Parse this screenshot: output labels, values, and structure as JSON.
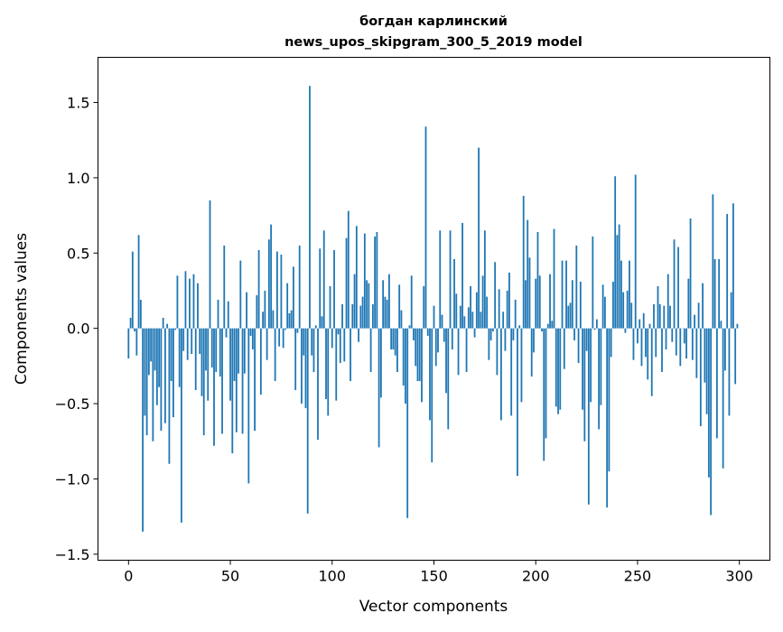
{
  "chart_data": {
    "type": "bar",
    "title": [
      "богдан карлинский",
      "news_upos_skipgram_300_5_2019 model"
    ],
    "xlabel": "Vector components",
    "ylabel": "Components values",
    "xlim": [
      -15,
      315
    ],
    "ylim": [
      -1.54,
      1.8
    ],
    "xticks": [
      0,
      50,
      100,
      150,
      200,
      250,
      300
    ],
    "xtick_labels": [
      "0",
      "50",
      "100",
      "150",
      "200",
      "250",
      "300"
    ],
    "yticks": [
      1.5,
      1.0,
      0.5,
      0.0,
      -0.5,
      -1.0,
      -1.5
    ],
    "ytick_labels": [
      "1.5",
      "1.0",
      "0.5",
      "0.0",
      "−0.5",
      "−1.0",
      "−1.5"
    ],
    "grid": false,
    "bar_color": "#1f77b4",
    "values": [
      -0.2,
      0.07,
      0.51,
      -0.02,
      -0.18,
      0.62,
      0.19,
      -1.35,
      -0.58,
      -0.71,
      -0.31,
      -0.22,
      -0.75,
      -0.28,
      -0.51,
      -0.39,
      -0.68,
      0.07,
      -0.63,
      0.03,
      -0.9,
      -0.35,
      -0.59,
      -0.01,
      0.35,
      -0.39,
      -1.29,
      -0.15,
      0.38,
      -0.21,
      0.33,
      -0.17,
      0.36,
      -0.41,
      0.3,
      -0.17,
      -0.45,
      -0.71,
      -0.28,
      -0.48,
      0.85,
      -0.26,
      -0.78,
      -0.29,
      0.19,
      -0.32,
      -0.7,
      0.55,
      -0.06,
      0.18,
      -0.48,
      -0.83,
      -0.35,
      -0.69,
      -0.3,
      0.45,
      -0.7,
      -0.3,
      0.24,
      -1.03,
      -0.05,
      -0.14,
      -0.68,
      0.22,
      0.52,
      -0.44,
      0.11,
      0.25,
      -0.21,
      0.59,
      0.69,
      0.12,
      -0.35,
      0.51,
      -0.12,
      0.49,
      -0.13,
      -0.01,
      0.3,
      0.1,
      0.12,
      0.41,
      -0.41,
      -0.03,
      0.55,
      -0.5,
      -0.18,
      -0.53,
      -1.23,
      1.61,
      -0.18,
      -0.29,
      0.02,
      -0.74,
      0.53,
      0.08,
      0.65,
      -0.47,
      -0.58,
      0.28,
      -0.13,
      0.52,
      -0.48,
      -0.04,
      -0.23,
      0.16,
      -0.22,
      0.6,
      0.78,
      -0.35,
      0.16,
      0.36,
      0.68,
      -0.09,
      0.15,
      0.21,
      0.63,
      0.32,
      0.3,
      -0.29,
      0.16,
      0.61,
      0.64,
      -0.79,
      -0.46,
      0.32,
      0.21,
      0.19,
      0.36,
      -0.14,
      -0.14,
      -0.18,
      -0.29,
      0.29,
      0.12,
      -0.38,
      -0.5,
      -1.26,
      0.02,
      0.35,
      -0.08,
      -0.25,
      -0.35,
      -0.35,
      -0.49,
      0.28,
      1.34,
      -0.05,
      -0.61,
      -0.89,
      0.15,
      -0.25,
      -0.16,
      0.65,
      0.09,
      -0.09,
      -0.43,
      -0.67,
      0.65,
      -0.14,
      0.46,
      0.23,
      -0.31,
      0.15,
      0.7,
      0.08,
      -0.29,
      0.14,
      0.28,
      0.11,
      -0.06,
      0.24,
      1.2,
      0.11,
      0.35,
      0.65,
      0.21,
      -0.21,
      -0.08,
      -0.02,
      0.44,
      -0.31,
      0.26,
      -0.61,
      0.11,
      -0.15,
      0.25,
      0.37,
      -0.58,
      -0.08,
      0.19,
      -0.98,
      0.02,
      -0.49,
      0.88,
      0.32,
      0.72,
      0.47,
      -0.32,
      -0.16,
      0.33,
      0.64,
      0.35,
      -0.02,
      -0.88,
      -0.73,
      0.03,
      0.36,
      0.05,
      0.66,
      -0.52,
      -0.57,
      -0.54,
      0.45,
      -0.27,
      0.45,
      0.15,
      0.17,
      0.32,
      -0.08,
      0.55,
      -0.23,
      0.31,
      -0.54,
      -0.75,
      -0.15,
      -1.17,
      -0.49,
      0.61,
      -0.01,
      0.06,
      -0.67,
      -0.51,
      0.29,
      0.21,
      -1.19,
      -0.95,
      -0.19,
      0.31,
      1.01,
      0.62,
      0.69,
      0.45,
      0.24,
      -0.03,
      0.25,
      0.45,
      0.17,
      -0.21,
      1.02,
      -0.1,
      0.06,
      -0.25,
      0.1,
      -0.19,
      -0.34,
      0.03,
      -0.45,
      0.16,
      -0.19,
      0.28,
      0.16,
      -0.29,
      0.15,
      -0.14,
      0.36,
      0.15,
      -0.09,
      0.59,
      -0.18,
      0.54,
      -0.25,
      0.0,
      -0.1,
      -0.2,
      0.33,
      0.73,
      -0.21,
      0.09,
      -0.33,
      0.17,
      -0.65,
      0.3,
      -0.36,
      -0.57,
      -0.99,
      -1.24,
      0.89,
      0.46,
      -0.73,
      0.46,
      0.05,
      -0.93,
      -0.28,
      0.76,
      -0.58,
      0.24,
      0.83,
      -0.37,
      0.03
    ]
  }
}
